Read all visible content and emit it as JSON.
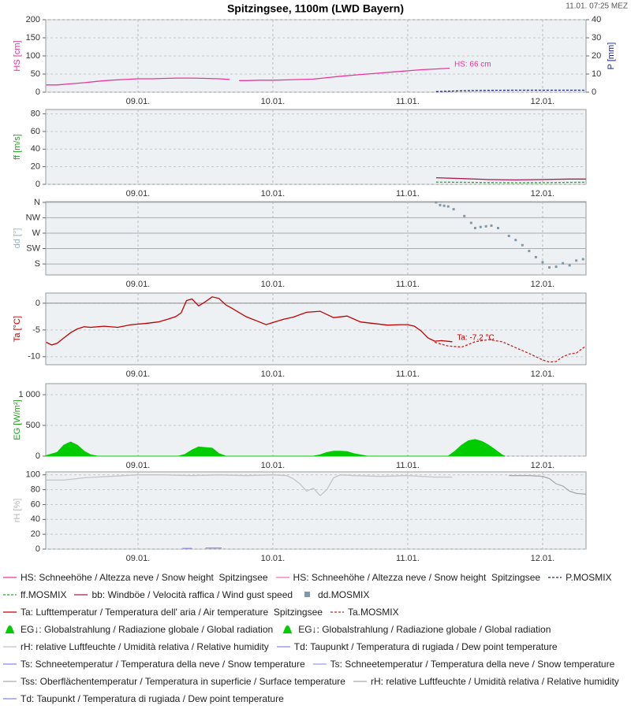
{
  "title": "Spitzingsee, 1100m (LWD Bayern)",
  "timestamp": "11.01. 07:25 MEZ",
  "chart_data": [
    {
      "type": "line",
      "ylabel": "HS [cm]",
      "ylabel_color": "#e0309a",
      "y2label": "P [mm]",
      "y2label_color": "#1a237e",
      "xlim": [
        8.316,
        12.322
      ],
      "xticks": [
        {
          "value": 9,
          "label": "09.01."
        },
        {
          "value": 10,
          "label": "10.01."
        },
        {
          "value": 11,
          "label": "11.01."
        },
        {
          "value": 12,
          "label": "12.01."
        }
      ],
      "ylim": [
        0,
        200
      ],
      "yticks": [
        0,
        50,
        100,
        150,
        200
      ],
      "y2lim": [
        0,
        40
      ],
      "y2ticks": [
        0,
        10,
        20,
        30,
        40
      ],
      "grid": true,
      "annotation": "HS: 66 cm",
      "series": [
        {
          "name": "HS: Schneehöhe / Altezza neve / Snow height  Spitzingsee",
          "color": "#e8369a",
          "dash": false,
          "x": [
            8.32,
            8.4,
            8.5,
            8.6,
            8.7,
            8.8,
            8.9,
            9.0,
            9.1,
            9.2,
            9.3,
            9.4,
            9.5,
            9.6,
            9.68,
            9.71,
            9.75,
            9.8,
            9.9,
            10.0,
            10.1,
            10.2,
            10.3,
            10.4,
            10.5,
            10.6,
            10.7,
            10.8,
            10.9,
            11.0,
            11.1,
            11.2,
            11.31
          ],
          "values": [
            20,
            20,
            23,
            26,
            30,
            33,
            35,
            37,
            37,
            38,
            39,
            39,
            38,
            37,
            35,
            null,
            32,
            32,
            33,
            33,
            34,
            35,
            36,
            40,
            44,
            47,
            50,
            53,
            56,
            59,
            62,
            64,
            66
          ]
        },
        {
          "name": "HS: Schneehöhe / Altezza neve / Snow height  Spitzingsee",
          "color": "#f070b8",
          "dash": false,
          "x": [],
          "values": []
        },
        {
          "name": "P.MOSMIX",
          "color": "#1a237e",
          "dash": true,
          "axis": "y2",
          "x": [
            11.21,
            11.4,
            11.6,
            11.8,
            12.0,
            12.2,
            12.32
          ],
          "values": [
            0.3,
            0.8,
            1.0,
            1.1,
            1.1,
            1.1,
            1.1
          ]
        }
      ]
    },
    {
      "type": "line",
      "ylabel": "ff [m/s]",
      "ylabel_color": "#22a022",
      "xlim": [
        8.316,
        12.322
      ],
      "xticks": [
        {
          "value": 9,
          "label": "09.01."
        },
        {
          "value": 10,
          "label": "10.01."
        },
        {
          "value": 11,
          "label": "11.01."
        },
        {
          "value": 12,
          "label": "12.01."
        }
      ],
      "ylim": [
        0,
        85
      ],
      "yticks": [
        0,
        20,
        40,
        60,
        80
      ],
      "grid": true,
      "series": [
        {
          "name": "ff.MOSMIX",
          "color": "#22aa22",
          "dash": true,
          "x": [
            11.21,
            11.4,
            11.6,
            11.8,
            12.0,
            12.2,
            12.32
          ],
          "values": [
            2.5,
            2.3,
            2.0,
            1.8,
            1.9,
            2.2,
            2.3
          ]
        },
        {
          "name": "bb: Windböe / Velocità raffica / Wind gust speed",
          "color": "#b01850",
          "dash": false,
          "x": [
            11.21,
            11.4,
            11.6,
            11.8,
            12.0,
            12.2,
            12.32
          ],
          "values": [
            7.5,
            6.5,
            5.5,
            5.0,
            5.5,
            6.0,
            6.0
          ]
        }
      ]
    },
    {
      "type": "scatter",
      "ylabel": "dd [°]",
      "ylabel_color": "#9ab0c0",
      "xlim": [
        8.316,
        12.322
      ],
      "xticks": [
        {
          "value": 9,
          "label": "09.01."
        },
        {
          "value": 10,
          "label": "10.01."
        },
        {
          "value": 11,
          "label": "11.01."
        },
        {
          "value": 12,
          "label": "12.01."
        }
      ],
      "ylim": [
        148,
        362
      ],
      "yticks": [
        {
          "value": 180,
          "label": "S"
        },
        {
          "value": 225,
          "label": "SW"
        },
        {
          "value": 270,
          "label": "W"
        },
        {
          "value": 315,
          "label": "NW"
        },
        {
          "value": 360,
          "label": "N"
        }
      ],
      "grid": true,
      "series": [
        {
          "name": "dd.MOSMIX",
          "color": "#7f99ab",
          "x": [
            11.21,
            11.24,
            11.27,
            11.3,
            11.34,
            11.42,
            11.47,
            11.5,
            11.54,
            11.58,
            11.62,
            11.67,
            11.75,
            11.8,
            11.85,
            11.9,
            11.95,
            12.0,
            12.05,
            12.1,
            12.15,
            12.2,
            12.25,
            12.3
          ],
          "values": [
            360,
            352,
            350,
            348,
            340,
            320,
            300,
            285,
            288,
            290,
            292,
            285,
            262,
            250,
            235,
            218,
            200,
            185,
            170,
            172,
            182,
            176,
            190,
            194
          ]
        }
      ]
    },
    {
      "type": "line",
      "ylabel": "Ta [°C]",
      "ylabel_color": "#c00000",
      "zero_line": true,
      "xlim": [
        8.316,
        12.322
      ],
      "xticks": [
        {
          "value": 9,
          "label": "09.01."
        },
        {
          "value": 10,
          "label": "10.01."
        },
        {
          "value": 11,
          "label": "11.01."
        },
        {
          "value": 12,
          "label": "12.01."
        }
      ],
      "ylim": [
        -11.5,
        1.9
      ],
      "yticks": [
        -10,
        -5,
        0
      ],
      "grid": true,
      "annotation": "Ta: -7.2 °C",
      "series": [
        {
          "name": "Ta: Lufttemperatur / Temperatura dell' aria / Air temperature  Spitzingsee",
          "color": "#c00000",
          "dash": false,
          "x": [
            8.32,
            8.36,
            8.4,
            8.45,
            8.5,
            8.55,
            8.6,
            8.65,
            8.75,
            8.85,
            8.95,
            9.05,
            9.15,
            9.22,
            9.28,
            9.32,
            9.36,
            9.4,
            9.45,
            9.5,
            9.55,
            9.6,
            9.65,
            9.7,
            9.8,
            9.9,
            9.95,
            10.0,
            10.08,
            10.15,
            10.25,
            10.35,
            10.45,
            10.55,
            10.65,
            10.75,
            10.85,
            10.95,
            11.0,
            11.05,
            11.1,
            11.15,
            11.2,
            11.25,
            11.33
          ],
          "values": [
            -7.3,
            -7.8,
            -7.5,
            -6.5,
            -5.5,
            -4.8,
            -4.4,
            -4.5,
            -4.3,
            -4.5,
            -4.0,
            -3.8,
            -3.5,
            -3.0,
            -2.5,
            -1.8,
            0.5,
            0.8,
            -0.5,
            0.3,
            1.2,
            0.9,
            -0.3,
            -1.0,
            -2.5,
            -3.5,
            -4.0,
            -3.6,
            -3.0,
            -2.6,
            -1.7,
            -1.5,
            -2.7,
            -2.4,
            -3.5,
            -3.8,
            -4.1,
            -4.0,
            -4.0,
            -4.3,
            -5.2,
            -6.5,
            -7.1,
            -7.0,
            -7.2
          ]
        },
        {
          "name": "Ta.MOSMIX",
          "color": "#d02020",
          "dash": true,
          "x": [
            11.2,
            11.3,
            11.4,
            11.5,
            11.6,
            11.7,
            11.8,
            11.9,
            12.0,
            12.05,
            12.1,
            12.15,
            12.2,
            12.25,
            12.32
          ],
          "values": [
            -7.3,
            -8.0,
            -8.2,
            -7.2,
            -6.8,
            -7.2,
            -8.3,
            -9.4,
            -10.6,
            -11.0,
            -10.9,
            -10.0,
            -9.5,
            -9.3,
            -8.0
          ]
        }
      ]
    },
    {
      "type": "area",
      "ylabel": "EG [W/m²]",
      "ylabel_color": "#22a022",
      "xlim": [
        8.316,
        12.322
      ],
      "xticks": [
        {
          "value": 9,
          "label": "09.01."
        },
        {
          "value": 10,
          "label": "10.01."
        },
        {
          "value": 11,
          "label": "11.01."
        },
        {
          "value": 12,
          "label": "12.01."
        }
      ],
      "ylim": [
        0,
        1180
      ],
      "yticks": [
        0,
        500,
        {
          "value": 1000,
          "label": "1 000"
        }
      ],
      "grid": true,
      "series": [
        {
          "name": "EG↓: Globalstrahlung / Radiazione globale / Global radiation",
          "color": "#00cc00",
          "x": [
            8.32,
            8.4,
            8.45,
            8.5,
            8.55,
            8.6,
            8.65,
            8.7,
            9.3,
            9.35,
            9.4,
            9.45,
            9.5,
            9.55,
            9.6,
            9.65,
            10.3,
            10.35,
            10.4,
            10.45,
            10.5,
            10.55,
            10.6,
            10.7,
            11.3,
            11.32
          ],
          "values": [
            10,
            60,
            180,
            230,
            180,
            80,
            20,
            0,
            0,
            30,
            100,
            150,
            140,
            130,
            40,
            0,
            0,
            20,
            60,
            80,
            80,
            75,
            40,
            0,
            0,
            0
          ]
        },
        {
          "name": "EG↓: Globalstrahlung / Radiazione globale / Global radiation",
          "color": "#00cc00",
          "x": [
            11.3,
            11.35,
            11.4,
            11.45,
            11.5,
            11.55,
            11.6,
            11.65,
            11.7,
            11.72
          ],
          "values": [
            0,
            80,
            180,
            250,
            270,
            240,
            180,
            100,
            20,
            0
          ]
        }
      ]
    },
    {
      "type": "line",
      "ylabel": "rH [%]",
      "ylabel_color": "#b8b8b8",
      "xlim": [
        8.316,
        12.322
      ],
      "xticks": [
        {
          "value": 9,
          "label": "09.01."
        },
        {
          "value": 10,
          "label": "10.01."
        },
        {
          "value": 11,
          "label": "11.01."
        },
        {
          "value": 12,
          "label": "12.01."
        }
      ],
      "ylim": [
        0,
        104
      ],
      "yticks": [
        0,
        20,
        40,
        60,
        80,
        100
      ],
      "grid": true,
      "series": [
        {
          "name": "rH: relative Luftfeuchte / Umidità relativa / Relative humidity",
          "color": "#c4c4c4",
          "dash": false,
          "x": [
            8.32,
            8.45,
            8.6,
            8.8,
            9.0,
            9.2,
            9.4,
            9.6,
            9.8,
            10.0,
            10.1,
            10.15,
            10.2,
            10.25,
            10.3,
            10.35,
            10.4,
            10.45,
            10.5,
            10.6,
            10.8,
            11.0,
            11.2,
            11.33
          ],
          "values": [
            93,
            93,
            96,
            98,
            100,
            100,
            99,
            100,
            99,
            100,
            99,
            95,
            88,
            78,
            82,
            72,
            80,
            96,
            100,
            99,
            98,
            99,
            97,
            97
          ]
        },
        {
          "name": "Td: Taupunkt / Temperatura di rugiada / Dew point temperature",
          "color": "#8888ee",
          "dash": false,
          "x": [
            9.33,
            9.4,
            9.45,
            9.5,
            9.62
          ],
          "values": [
            1,
            1,
            null,
            1.5,
            1.5
          ]
        },
        {
          "name": "Ts: Schneetemperatur / Temperatura della neve / Snow temperature",
          "color": "#8888ee",
          "dash": false,
          "x": [],
          "values": []
        },
        {
          "name": "Ts: Schneetemperatur / Temperatura della neve / Snow temperature",
          "color": "#9a9af0",
          "dash": false,
          "x": [],
          "values": []
        },
        {
          "name": "Tss: Oberflächentemperatur / Temperatura in superficie / Surface temperature",
          "color": "#aaaaaa",
          "dash": false,
          "x": [],
          "values": []
        },
        {
          "name": "rH: relative Luftfeuchte / Umidità relativa / Relative humidity",
          "color": "#aaaaaa",
          "dash": false,
          "x": [
            11.75,
            11.9,
            12.0,
            12.05,
            12.1,
            12.15,
            12.2,
            12.25,
            12.32
          ],
          "values": [
            99,
            99,
            98,
            95,
            88,
            85,
            78,
            75,
            74
          ]
        },
        {
          "name": "Td: Taupunkt / Temperatura di rugiada / Dew point temperature",
          "color": "#8888ee",
          "dash": false,
          "x": [],
          "values": []
        }
      ]
    }
  ]
}
